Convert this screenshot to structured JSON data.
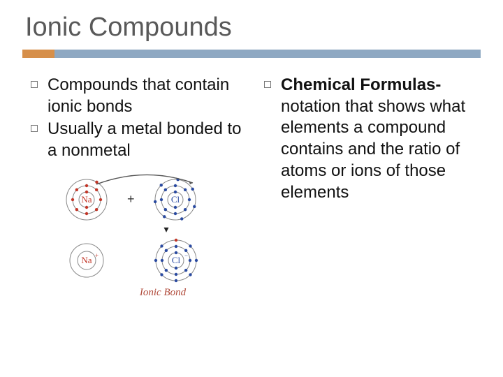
{
  "title": "Ionic Compounds",
  "ruler": {
    "accent_color": "#d68f4a",
    "bar_color": "#8ea8c2"
  },
  "left_bullets": [
    {
      "text": "Compounds that contain ionic bonds"
    },
    {
      "text": "Usually a metal bonded to a nonmetal"
    }
  ],
  "right_bullets": [
    {
      "bold": "Chemical Formulas-",
      "rest": " notation that shows what elements a compound contains and the ratio of atoms or ions of those elements"
    }
  ],
  "diagram": {
    "na": {
      "label": "Na",
      "label_color": "#c23628",
      "electron_color": "#c23628",
      "ring_color": "#888888"
    },
    "cl": {
      "label": "Cl",
      "label_color": "#2a4aa0",
      "electron_color": "#2a4aa0",
      "ring_color": "#888888"
    },
    "na_ion": {
      "label": "Na",
      "sup": "+",
      "label_color": "#c23628",
      "ring_color": "#888888"
    },
    "cl_ion": {
      "label": "Cl",
      "sup": "−",
      "label_color": "#2a4aa0",
      "electron_color": "#2a4aa0",
      "transferred_color": "#c23628",
      "ring_color": "#888888"
    },
    "plus_sign": "+",
    "arrow": "▾",
    "caption": "Ionic Bond",
    "transfer_arrow_color": "#555555"
  },
  "fonts": {
    "title_size": 38,
    "body_size": 24
  },
  "colors": {
    "title": "#595959",
    "body": "#111111",
    "bg": "#ffffff"
  }
}
